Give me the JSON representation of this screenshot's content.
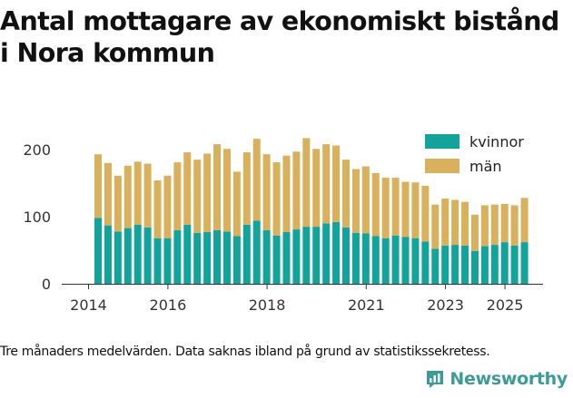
{
  "title": "Antal mottagare av ekonomiskt bistånd i Nora kommun",
  "caption": "Tre månaders medelvärden. Data saknas ibland på grund av statistikssekretess.",
  "brand": {
    "name": "Newsworthy",
    "icon": "newsworthy-logo-icon"
  },
  "colors": {
    "kvinnor": "#12a39a",
    "man": "#d9b05b",
    "axis": "#333333",
    "grid": "#cccccc"
  },
  "chart_data": {
    "type": "bar",
    "stacked": true,
    "grid": false,
    "legend_position": "top-right",
    "x_ticks": [
      "2014",
      "2016",
      "2018",
      "2021",
      "2023",
      "2025"
    ],
    "y_ticks": [
      "0",
      "100",
      "200"
    ],
    "ylim": [
      0,
      230
    ],
    "categories": [
      "2014-Q2",
      "2014-Q3",
      "2014-Q4",
      "2015-Q1",
      "2015-Q2",
      "2015-Q3",
      "2015-Q4",
      "2016-Q1",
      "2016-Q2",
      "2016-Q3",
      "2016-Q4",
      "2017-Q1",
      "2017-Q2",
      "2017-Q3",
      "2017-Q4",
      "2018-Q1",
      "2018-Q2",
      "2018-Q3",
      "2018-Q4",
      "2019-Q1",
      "2019-Q2",
      "2019-Q3",
      "2019-Q4",
      "2020-Q1",
      "2020-Q2",
      "2020-Q3",
      "2020-Q4",
      "2021-Q1",
      "2021-Q2",
      "2021-Q3",
      "2021-Q4",
      "2022-Q1",
      "2022-Q2",
      "2022-Q3",
      "2022-Q4",
      "2023-Q1",
      "2023-Q2",
      "2023-Q3",
      "2023-Q4",
      "2024-Q1",
      "2024-Q2",
      "2024-Q3",
      "2024-Q4",
      "2025-Q1"
    ],
    "series": [
      {
        "name": "kvinnor",
        "values": [
          98,
          87,
          78,
          83,
          88,
          84,
          68,
          68,
          80,
          88,
          76,
          77,
          80,
          78,
          71,
          88,
          94,
          80,
          72,
          77,
          81,
          85,
          85,
          90,
          92,
          84,
          76,
          75,
          71,
          68,
          72,
          70,
          68,
          63,
          52,
          57,
          58,
          57,
          49,
          56,
          58,
          62,
          57,
          62
        ]
      },
      {
        "name": "män",
        "values": [
          95,
          93,
          83,
          93,
          94,
          95,
          86,
          93,
          101,
          108,
          109,
          117,
          128,
          123,
          96,
          108,
          122,
          113,
          109,
          114,
          116,
          132,
          116,
          118,
          114,
          101,
          95,
          100,
          94,
          90,
          86,
          82,
          83,
          83,
          66,
          70,
          67,
          65,
          54,
          61,
          60,
          57,
          60,
          66
        ]
      }
    ],
    "tick_category_index": {
      "2014": 0,
      "2016": 8,
      "2018": 18,
      "2021": 28,
      "2023": 36,
      "2025": 42
    }
  }
}
